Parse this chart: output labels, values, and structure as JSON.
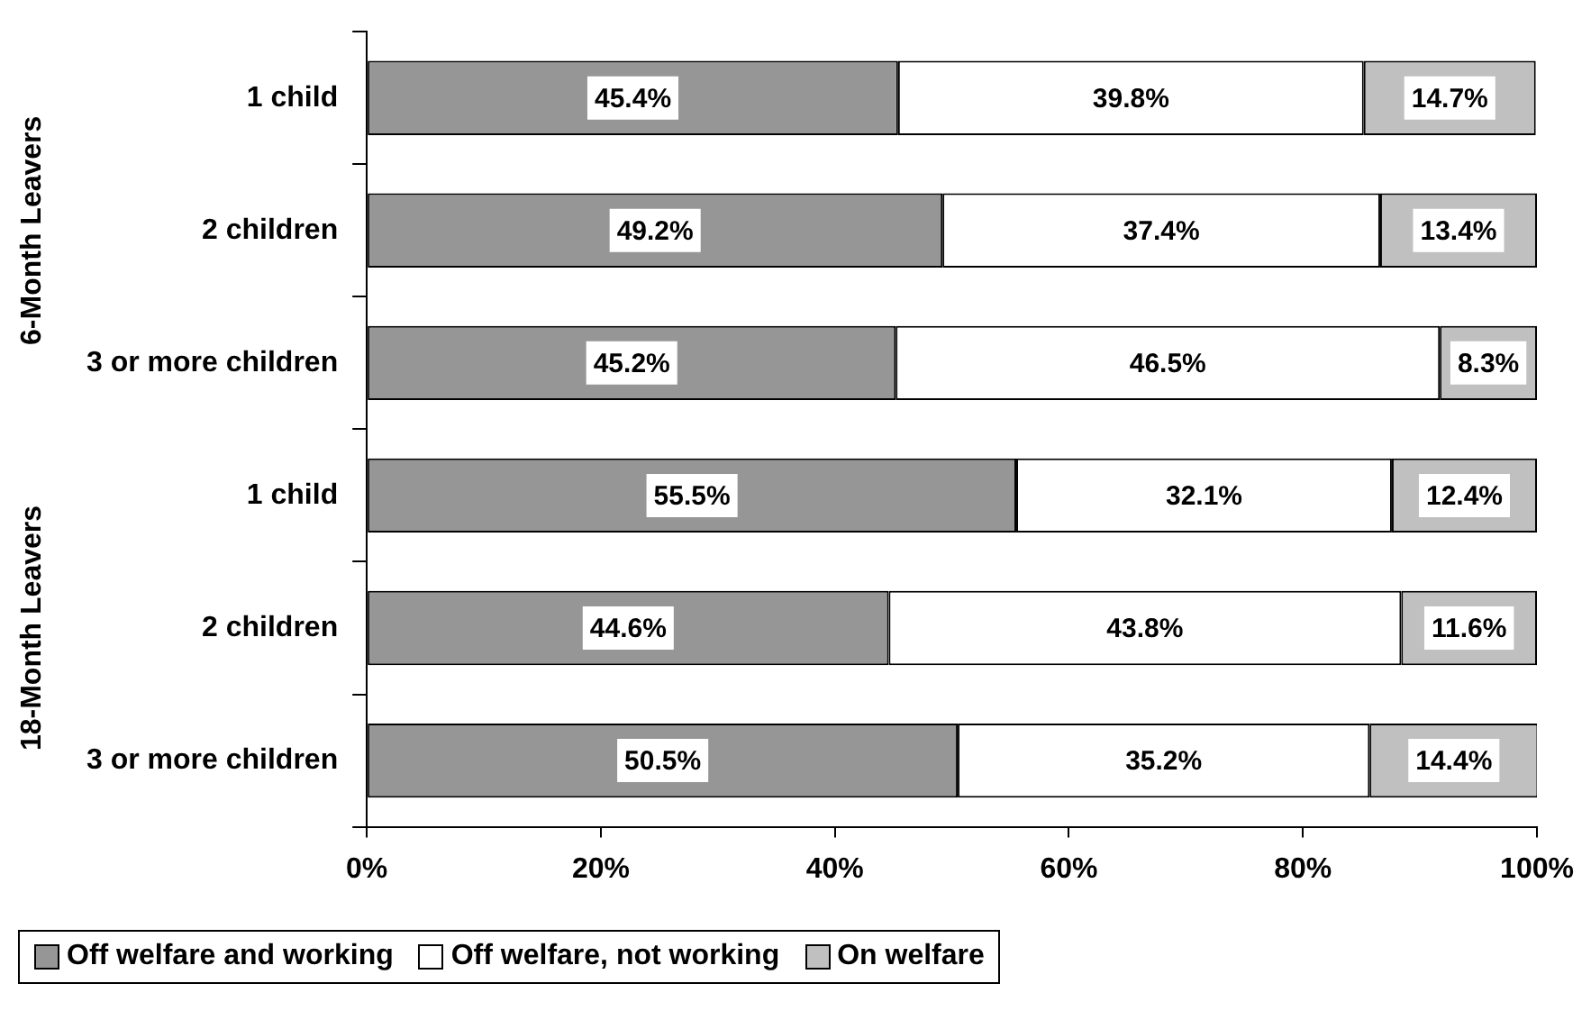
{
  "chart_data": {
    "type": "bar",
    "orientation": "horizontal",
    "stacked": true,
    "categories": [
      "1 child",
      "2 children",
      "3 or more children",
      "1 child",
      "2 children",
      "3 or more children"
    ],
    "series": [
      {
        "name": "Off welfare and working",
        "color": "#969696",
        "values": [
          45.4,
          49.2,
          45.2,
          55.5,
          44.6,
          50.5
        ],
        "value_labels": [
          "45.4%",
          "49.2%",
          "45.2%",
          "55.5%",
          "44.6%",
          "50.5%"
        ]
      },
      {
        "name": "Off welfare, not working",
        "color": "#ffffff",
        "values": [
          39.8,
          37.4,
          46.5,
          32.1,
          43.8,
          35.2
        ],
        "value_labels": [
          "39.8%",
          "37.4%",
          "46.5%",
          "32.1%",
          "43.8%",
          "35.2%"
        ]
      },
      {
        "name": "On welfare",
        "color": "#c0c0c0",
        "values": [
          14.7,
          13.4,
          8.3,
          12.4,
          11.6,
          14.4
        ],
        "value_labels": [
          "14.7%",
          "13.4%",
          "8.3%",
          "12.4%",
          "11.6%",
          "14.4%"
        ]
      }
    ],
    "xlim": [
      0,
      100
    ],
    "xticks": [
      {
        "value": 0,
        "label": "0%"
      },
      {
        "value": 20,
        "label": "20%"
      },
      {
        "value": 40,
        "label": "40%"
      },
      {
        "value": 60,
        "label": "60%"
      },
      {
        "value": 80,
        "label": "80%"
      },
      {
        "value": 100,
        "label": "100%"
      }
    ],
    "annotations": [
      "6-Month Leavers",
      "18-Month Leavers"
    ],
    "grid": false,
    "legend": "bottom"
  }
}
